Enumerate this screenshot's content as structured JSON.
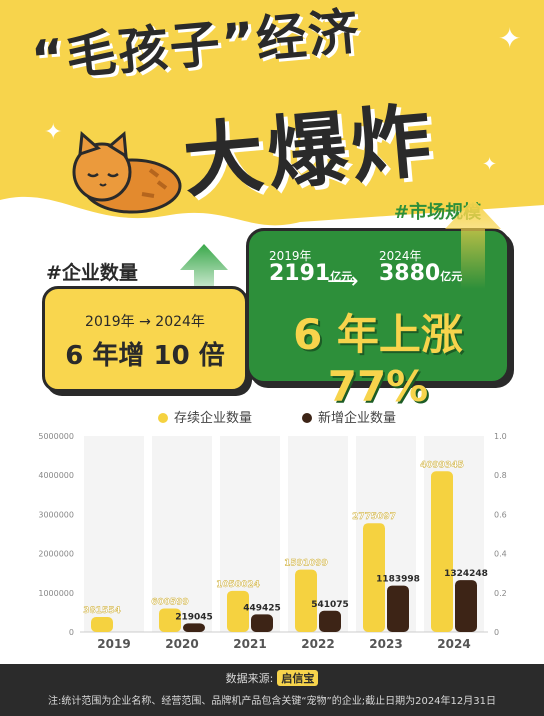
{
  "header": {
    "title_line1": "“毛孩子”经济",
    "title_line2": "大爆炸"
  },
  "enterprise_card": {
    "tag": "#企业数量",
    "years": "2019年 → 2024年",
    "headline": "6 年增 10 倍"
  },
  "market_card": {
    "tag": "#市场规模",
    "year_from": "2019年",
    "value_from": "2191",
    "year_to": "2024年",
    "value_to": "3880",
    "unit": "亿元",
    "headline": "6 年上涨 77%"
  },
  "legend": {
    "existing": "存续企业数量",
    "new": "新增企业数量"
  },
  "colors": {
    "hero_yellow": "#f7d44c",
    "bar_yellow": "#f5d240",
    "bar_brown": "#3d2416",
    "green": "#2d8f3a",
    "dark": "#2b2b2b"
  },
  "chart_data": {
    "type": "bar",
    "categories": [
      "2019",
      "2020",
      "2021",
      "2022",
      "2023",
      "2024"
    ],
    "series": [
      {
        "name": "存续企业数量",
        "values": [
          381554,
          600599,
          1050024,
          1591099,
          2775097,
          4099345
        ]
      },
      {
        "name": "新增企业数量",
        "values": [
          null,
          219045,
          449425,
          541075,
          1183998,
          1324248
        ]
      }
    ],
    "ylim": [
      0,
      5000000
    ],
    "y_ticks": [
      "0",
      "1000000",
      "2000000",
      "3000000",
      "4000000",
      "5000000"
    ],
    "y2lim": [
      0,
      1.0
    ],
    "y2_ticks": [
      "0",
      "0.2",
      "0.4",
      "0.6",
      "0.8",
      "1.0"
    ],
    "legend_position": "top"
  },
  "footer": {
    "source_label": "数据来源:",
    "source_brand": "启信宝",
    "note": "注:统计范围为企业名称、经营范围、品牌机产品包含关键“宠物”的企业;截止日期为2024年12月31日"
  }
}
